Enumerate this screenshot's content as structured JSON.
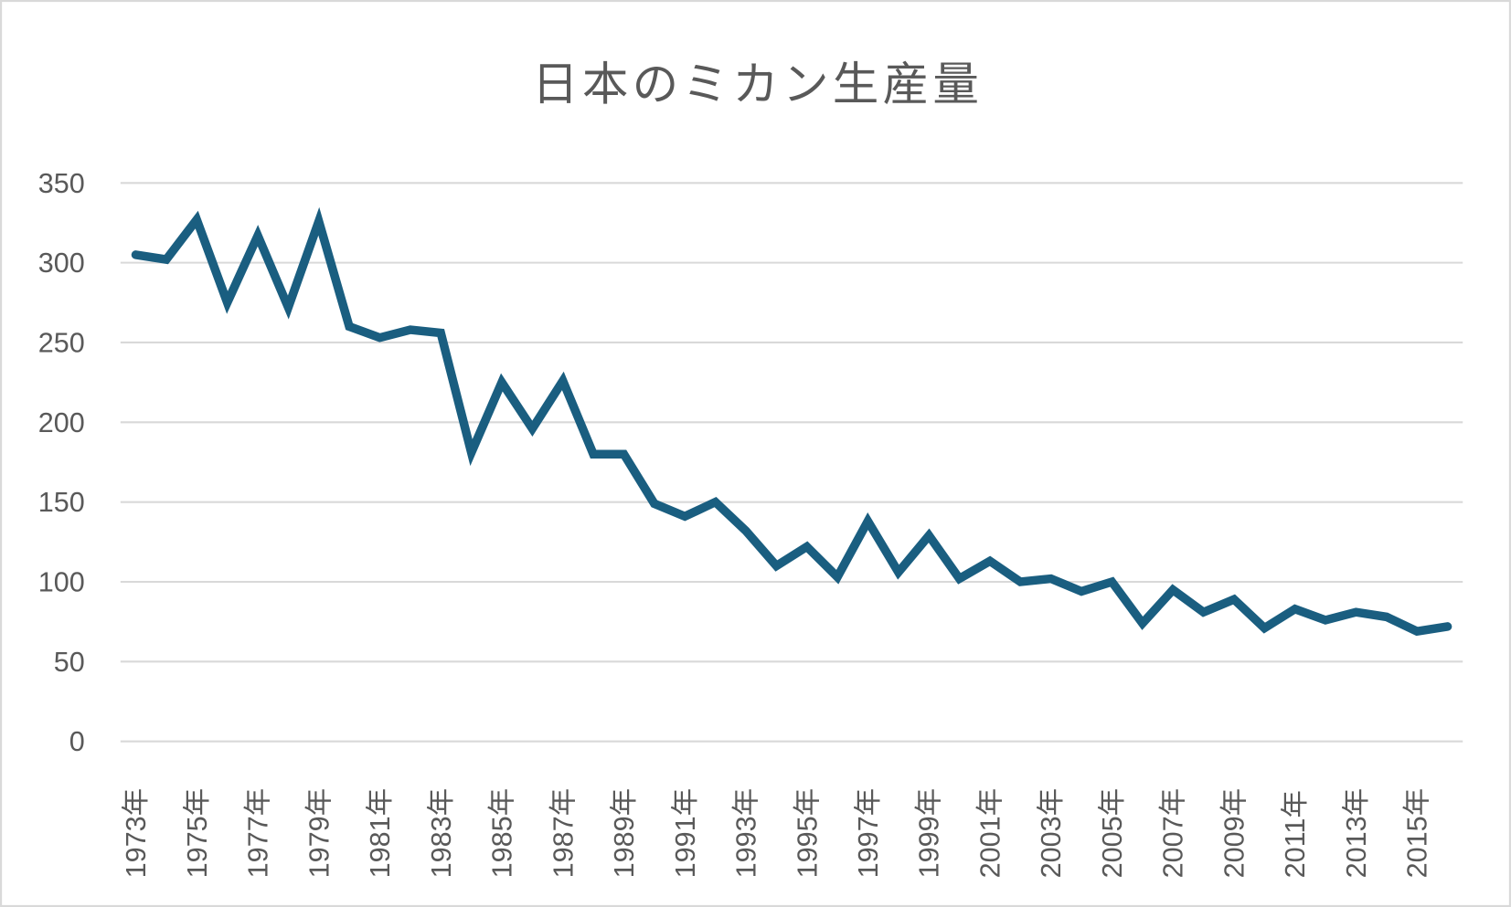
{
  "chart_data": {
    "type": "line",
    "title": "日本のミカン生産量",
    "xlabel": "",
    "ylabel": "",
    "ylim": [
      0,
      350
    ],
    "yticks": [
      0,
      50,
      100,
      150,
      200,
      250,
      300,
      350
    ],
    "grid": true,
    "legend": "none",
    "color": "#1a5e80",
    "categories": [
      "1973年",
      "1974年",
      "1975年",
      "1976年",
      "1977年",
      "1978年",
      "1979年",
      "1980年",
      "1981年",
      "1982年",
      "1983年",
      "1984年",
      "1985年",
      "1986年",
      "1987年",
      "1988年",
      "1989年",
      "1990年",
      "1991年",
      "1992年",
      "1993年",
      "1994年",
      "1995年",
      "1996年",
      "1997年",
      "1998年",
      "1999年",
      "2000年",
      "2001年",
      "2002年",
      "2003年",
      "2004年",
      "2005年",
      "2006年",
      "2007年",
      "2008年",
      "2009年",
      "2010年",
      "2011年",
      "2012年",
      "2013年",
      "2014年",
      "2015年",
      "2016年"
    ],
    "x_tick_labels": [
      "1973年",
      "1975年",
      "1977年",
      "1979年",
      "1981年",
      "1983年",
      "1985年",
      "1987年",
      "1989年",
      "1991年",
      "1993年",
      "1995年",
      "1997年",
      "1999年",
      "2001年",
      "2003年",
      "2005年",
      "2007年",
      "2009年",
      "2011年",
      "2013年",
      "2015年"
    ],
    "values": [
      305,
      302,
      327,
      275,
      317,
      272,
      326,
      260,
      253,
      258,
      256,
      181,
      225,
      196,
      226,
      180,
      180,
      149,
      141,
      150,
      132,
      110,
      122,
      103,
      138,
      106,
      129,
      102,
      113,
      100,
      102,
      94,
      100,
      74,
      95,
      81,
      89,
      71,
      83,
      76,
      81,
      78,
      69,
      72
    ]
  }
}
